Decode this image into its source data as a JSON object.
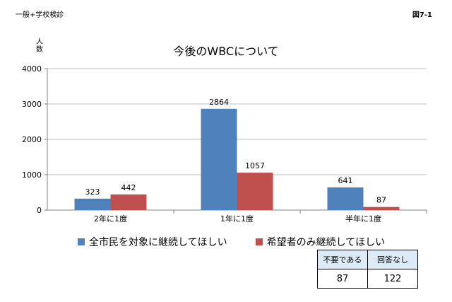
{
  "header": {
    "left": "一般+学校検診",
    "right": "図7-1"
  },
  "chart_data": {
    "type": "bar",
    "title": "今後のWBCについて",
    "ylabel": "人数",
    "categories": [
      "2年に1度",
      "1年に1度",
      "半年に1度"
    ],
    "series": [
      {
        "name": "全市民を対象に継続してほしい",
        "values": [
          323,
          2864,
          641
        ],
        "color": "#4f81bd"
      },
      {
        "name": "希望者のみ継続してほしい",
        "values": [
          442,
          1057,
          87
        ],
        "color": "#c0504d"
      }
    ],
    "ylim": [
      0,
      4000
    ],
    "yticks": [
      0,
      1000,
      2000,
      3000,
      4000
    ],
    "grid": true,
    "legend": "bottom"
  },
  "summary": {
    "headers": [
      "不要である",
      "回答なし"
    ],
    "values": [
      "87",
      "122"
    ]
  }
}
